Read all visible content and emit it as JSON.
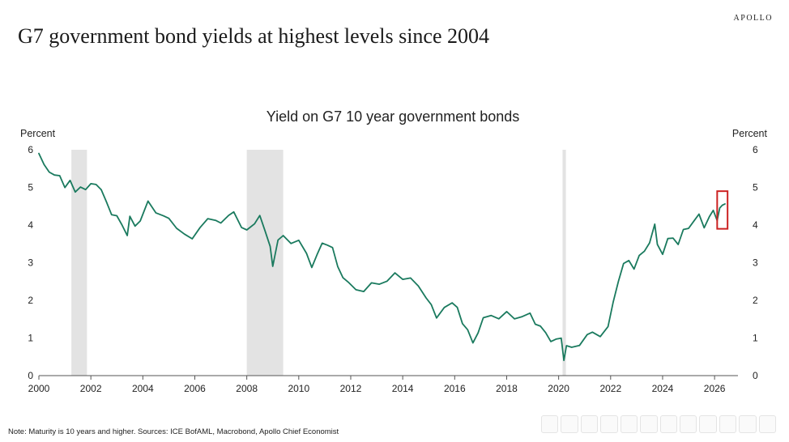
{
  "brand": "APOLLO",
  "page_title": "G7 government bond yields at highest levels since 2004",
  "footnote": "Note: Maturity is 10 years and higher. Sources: ICE BofAML, Macrobond, Apollo Chief Economist",
  "colors": {
    "line": "#1a7a5e",
    "recession": "#e3e3e3",
    "highlight": "#cc2222",
    "axis": "#555555"
  },
  "chart_data": {
    "type": "line",
    "title": "Yield on G7 10 year government bonds",
    "ylabel_left": "Percent",
    "ylabel_right": "Percent",
    "xlim": [
      2000,
      2026.9
    ],
    "ylim": [
      0,
      6
    ],
    "x_ticks": [
      2000,
      2002,
      2004,
      2006,
      2008,
      2010,
      2012,
      2014,
      2016,
      2018,
      2020,
      2022,
      2024,
      2026
    ],
    "y_ticks": [
      0,
      1,
      2,
      3,
      4,
      5,
      6
    ],
    "legend": "none",
    "grid": false,
    "recession_shading": [
      [
        2001.25,
        2001.85
      ],
      [
        2008.0,
        2009.4
      ],
      [
        2020.15,
        2020.28
      ]
    ],
    "highlight_box": {
      "x": [
        2026.1,
        2026.5
      ],
      "y": [
        3.9,
        4.9
      ]
    },
    "series": [
      {
        "x": [
          2000.0,
          2000.2,
          2000.4,
          2000.6,
          2000.8,
          2001.0,
          2001.2,
          2001.4,
          2001.6,
          2001.8,
          2002.0,
          2002.2,
          2002.4,
          2002.6,
          2002.8,
          2003.0,
          2003.2,
          2003.4,
          2003.5,
          2003.7,
          2003.9,
          2004.2,
          2004.5,
          2004.8,
          2005.0,
          2005.3,
          2005.6,
          2005.9,
          2006.2,
          2006.5,
          2006.8,
          2007.0,
          2007.3,
          2007.5,
          2007.8,
          2008.0,
          2008.3,
          2008.5,
          2008.7,
          2008.9,
          2009.0,
          2009.2,
          2009.4,
          2009.7,
          2010.0,
          2010.3,
          2010.5,
          2010.7,
          2010.9,
          2011.1,
          2011.3,
          2011.5,
          2011.7,
          2011.9,
          2012.2,
          2012.5,
          2012.8,
          2013.1,
          2013.4,
          2013.7,
          2014.0,
          2014.3,
          2014.6,
          2014.9,
          2015.1,
          2015.3,
          2015.6,
          2015.9,
          2016.1,
          2016.3,
          2016.5,
          2016.7,
          2016.9,
          2017.1,
          2017.4,
          2017.7,
          2018.0,
          2018.3,
          2018.6,
          2018.9,
          2019.1,
          2019.3,
          2019.5,
          2019.7,
          2019.9,
          2020.1,
          2020.2,
          2020.3,
          2020.5,
          2020.8,
          2021.1,
          2021.3,
          2021.6,
          2021.9,
          2022.1,
          2022.3,
          2022.5,
          2022.7,
          2022.9,
          2023.1,
          2023.3,
          2023.5,
          2023.7,
          2023.8,
          2024.0,
          2024.2,
          2024.4,
          2024.6,
          2024.8,
          2025.0,
          2025.2,
          2025.4,
          2025.6,
          2025.8,
          2025.95,
          2026.1,
          2026.2,
          2026.3,
          2026.4
        ],
        "y": [
          5.9,
          5.6,
          5.5,
          5.35,
          5.2,
          5.05,
          5.1,
          4.9,
          5.1,
          4.95,
          5.05,
          5.1,
          4.85,
          4.6,
          4.4,
          4.2,
          4.05,
          3.7,
          4.15,
          3.95,
          4.2,
          4.6,
          4.4,
          4.25,
          4.05,
          3.95,
          3.75,
          3.65,
          4.0,
          4.2,
          4.0,
          4.1,
          4.2,
          4.35,
          4.05,
          3.85,
          4.0,
          4.25,
          3.8,
          3.4,
          3.05,
          3.55,
          3.75,
          3.5,
          3.5,
          3.25,
          2.95,
          3.2,
          3.55,
          3.5,
          3.25,
          2.95,
          2.6,
          2.5,
          2.35,
          2.25,
          2.35,
          2.45,
          2.5,
          2.7,
          2.7,
          2.55,
          2.35,
          2.05,
          1.85,
          1.5,
          1.95,
          1.9,
          1.8,
          1.4,
          1.1,
          0.9,
          1.2,
          1.55,
          1.6,
          1.55,
          1.55,
          1.55,
          1.6,
          1.65,
          1.45,
          1.3,
          1.05,
          0.9,
          1.0,
          0.95,
          0.55,
          0.75,
          0.7,
          0.8,
          1.05,
          1.15,
          1.15,
          1.3,
          1.9,
          2.55,
          2.85,
          3.1,
          2.9,
          3.2,
          3.3,
          3.55,
          3.9,
          3.5,
          3.3,
          3.6,
          3.75,
          3.45,
          3.8,
          3.9,
          4.15,
          4.25,
          4.05,
          4.2,
          4.3,
          4.15,
          4.4,
          4.55,
          4.65
        ]
      }
    ]
  }
}
